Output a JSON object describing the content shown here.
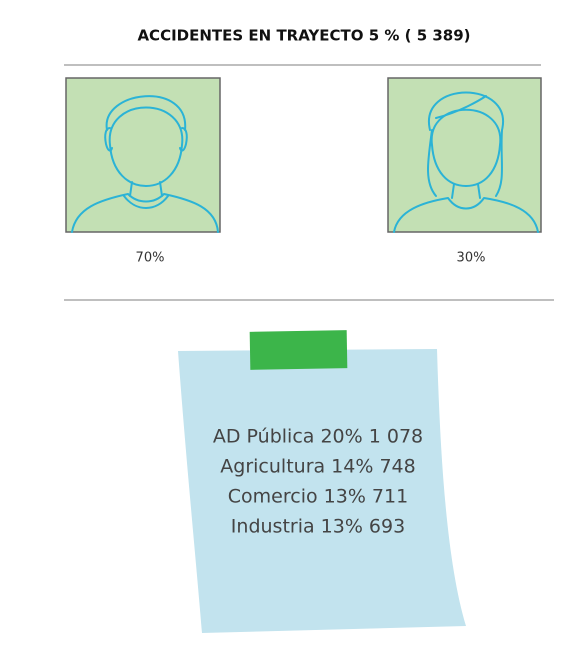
{
  "title": "ACCIDENTES EN TRAYECTO 5 % ( 5 389)",
  "figures": [
    {
      "label": "70%"
    },
    {
      "label": "30%"
    }
  ],
  "note": {
    "lines": [
      "AD Pública 20% 1 078",
      "Agricultura 14% 748",
      "Comercio 13% 711",
      "Industria 13% 693"
    ]
  }
}
